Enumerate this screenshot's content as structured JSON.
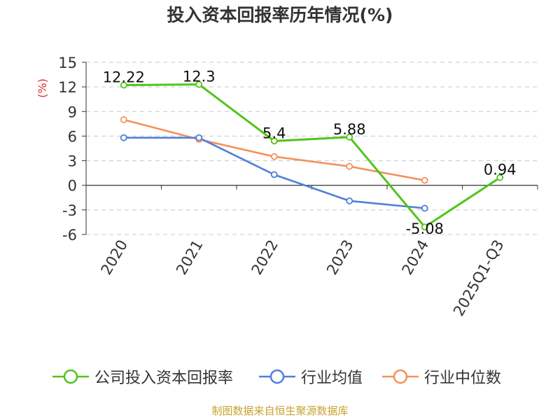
{
  "chart_data": {
    "type": "line",
    "title": "投入资本回报率历年情况(%)",
    "ylabel": "(%)",
    "xlabel": "",
    "categories": [
      "2020",
      "2021",
      "2022",
      "2023",
      "2024",
      "2025Q1-Q3"
    ],
    "ylim": [
      -6,
      15
    ],
    "yticks": [
      15,
      12,
      9,
      6,
      3,
      0,
      -3,
      -6
    ],
    "grid": true,
    "legend_position": "bottom",
    "series": [
      {
        "name": "公司投入资本回报率",
        "color": "#52c41a",
        "values": [
          12.22,
          12.3,
          5.4,
          5.88,
          -5.08,
          0.94
        ],
        "labels": [
          "12.22",
          "12.3",
          "5.4",
          "5.88",
          "-5.08",
          "0.94"
        ]
      },
      {
        "name": "行业均值",
        "color": "#4f7fd9",
        "values": [
          5.8,
          5.8,
          1.3,
          -1.9,
          -2.8,
          null
        ]
      },
      {
        "name": "行业中位数",
        "color": "#f49158",
        "values": [
          8.0,
          5.6,
          3.5,
          2.3,
          0.6,
          null
        ]
      }
    ],
    "source": "制图数据来自恒生聚源数据库"
  }
}
